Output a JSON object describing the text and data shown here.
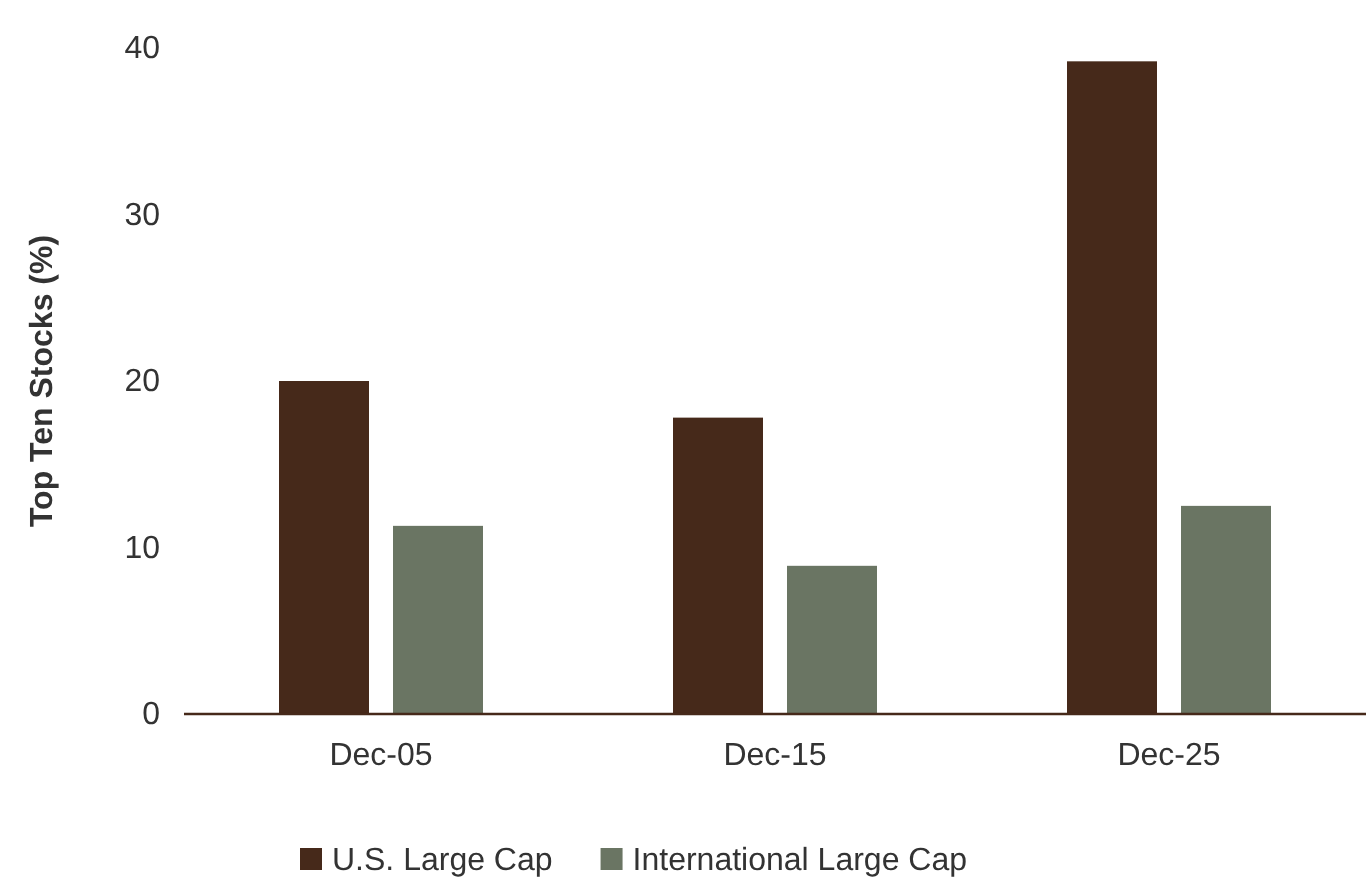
{
  "chart_data": {
    "type": "bar",
    "ylabel": "Top Ten Stocks (%)",
    "categories": [
      "Dec-05",
      "Dec-15",
      "Dec-25"
    ],
    "series": [
      {
        "name": "U.S. Large Cap",
        "color": "#46291a",
        "values": [
          20.0,
          17.8,
          39.2
        ]
      },
      {
        "name": "International Large Cap",
        "color": "#6a7563",
        "values": [
          11.3,
          8.9,
          12.5
        ]
      }
    ],
    "ylim": [
      0,
      40
    ],
    "yticks": [
      0,
      10,
      20,
      30,
      40
    ],
    "grid": false,
    "legend": "bottom"
  }
}
